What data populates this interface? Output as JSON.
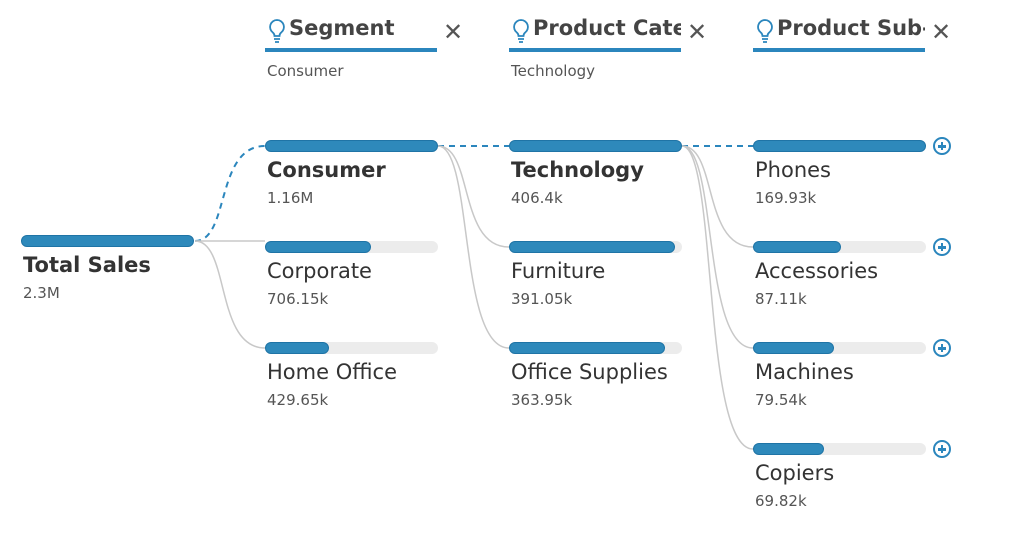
{
  "accent": "#2e89bb",
  "root": {
    "label": "Total Sales",
    "value": "2.3M",
    "fraction": 1
  },
  "columns": [
    {
      "header": "Segment",
      "selected": "Consumer",
      "icon": "lightbulb-icon",
      "nodes": [
        {
          "label": "Consumer",
          "value": "1.16M",
          "fraction": 1,
          "expanded": true
        },
        {
          "label": "Corporate",
          "value": "706.15k",
          "fraction": 0.61
        },
        {
          "label": "Home Office",
          "value": "429.65k",
          "fraction": 0.37
        }
      ]
    },
    {
      "header": "Product Category",
      "selected": "Technology",
      "icon": "lightbulb-icon",
      "nodes": [
        {
          "label": "Technology",
          "value": "406.4k",
          "fraction": 1,
          "expanded": true
        },
        {
          "label": "Furniture",
          "value": "391.05k",
          "fraction": 0.96
        },
        {
          "label": "Office Supplies",
          "value": "363.95k",
          "fraction": 0.9
        }
      ]
    },
    {
      "header": "Product Sub-Category",
      "selected": "",
      "icon": "lightbulb-icon",
      "nodes": [
        {
          "label": "Phones",
          "value": "169.93k",
          "fraction": 1
        },
        {
          "label": "Accessories",
          "value": "87.11k",
          "fraction": 0.51
        },
        {
          "label": "Machines",
          "value": "79.54k",
          "fraction": 0.47
        },
        {
          "label": "Copiers",
          "value": "69.82k",
          "fraction": 0.41
        }
      ]
    }
  ]
}
